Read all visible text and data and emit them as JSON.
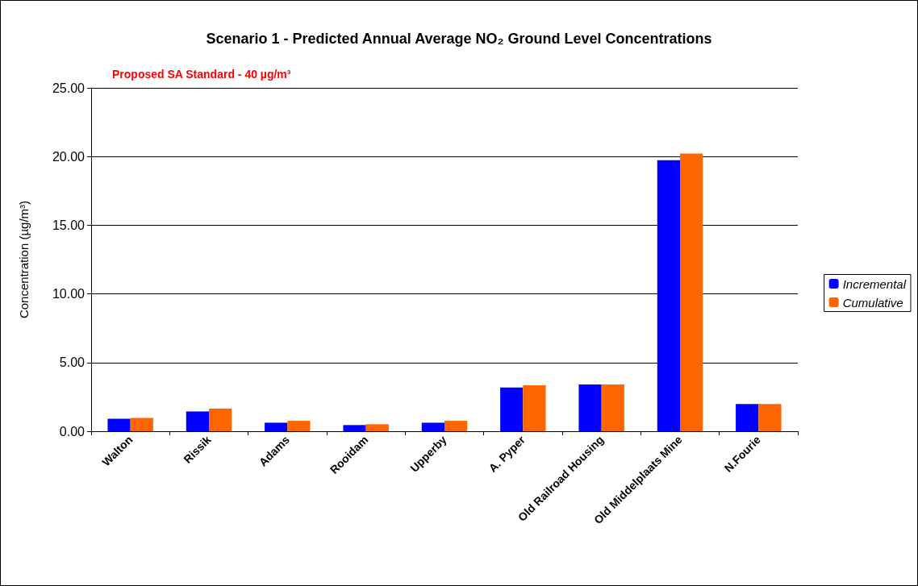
{
  "chart_data": {
    "type": "bar",
    "title": "Scenario 1 - Predicted Annual Average NO₂ Ground Level Concentrations",
    "ylabel": "Concentration (µg/m³)",
    "annotations": [
      "Proposed SA Standard - 40 µg/m³"
    ],
    "categories": [
      "Walton",
      "Rissik",
      "Adams",
      "Rooidam",
      "Upperby",
      "A. Pyper",
      "Old Railroad Housing",
      "Old Middelplaats Mine",
      "N.Fourie"
    ],
    "series": [
      {
        "name": "Incremental",
        "color": "#0000ff",
        "values": [
          0.91,
          1.44,
          0.62,
          0.45,
          0.62,
          3.19,
          3.4,
          19.73,
          1.98
        ]
      },
      {
        "name": "Cumulative",
        "color": "#ff6600",
        "values": [
          0.97,
          1.65,
          0.76,
          0.51,
          0.76,
          3.35,
          3.4,
          20.22,
          1.98
        ]
      }
    ],
    "ylim": [
      0,
      25
    ],
    "yticks": [
      {
        "value": 0,
        "label": "0.00"
      },
      {
        "value": 5,
        "label": "5.00"
      },
      {
        "value": 10,
        "label": "10.00"
      },
      {
        "value": 15,
        "label": "15.00"
      },
      {
        "value": 20,
        "label": "20.00"
      },
      {
        "value": 25,
        "label": "25.00"
      }
    ],
    "grid": "y",
    "legend": "right"
  }
}
